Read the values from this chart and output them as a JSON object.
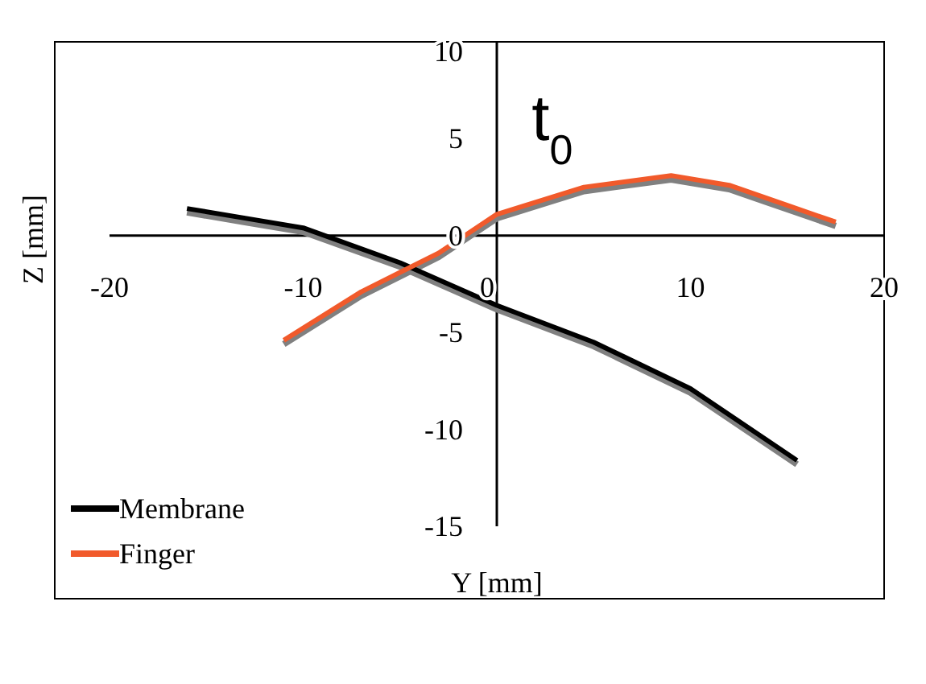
{
  "chart_data": {
    "type": "line",
    "xlabel": "Y [mm]",
    "ylabel": "Z [mm]",
    "xlim": [
      -20,
      20
    ],
    "ylim": [
      -15,
      10
    ],
    "xticks": [
      -20,
      -10,
      0,
      10,
      20
    ],
    "yticks": [
      10,
      5,
      0,
      -5,
      -10,
      -15
    ],
    "annotations": [
      "t$_{0}$"
    ],
    "legend": "bottom left",
    "series": [
      {
        "color": "#808080",
        "x": [
          -16,
          -13,
          -10,
          -5,
          0,
          5,
          10,
          15.5
        ],
        "values": [
          1.2,
          0.7,
          0.2,
          -1.6,
          -3.8,
          -5.7,
          -8.1,
          -11.8
        ]
      },
      {
        "color": "#808080",
        "x": [
          -11,
          -7,
          -3,
          0,
          4.5,
          9,
          12,
          17.5
        ],
        "values": [
          -5.6,
          -3.1,
          -1.1,
          0.9,
          2.3,
          2.9,
          2.4,
          0.5
        ]
      },
      {
        "name": "Membrane",
        "color": "#000000",
        "x": [
          -16,
          -13,
          -10,
          -5,
          0,
          5,
          10,
          15.5
        ],
        "values": [
          1.4,
          0.9,
          0.4,
          -1.4,
          -3.6,
          -5.5,
          -7.9,
          -11.6
        ]
      },
      {
        "name": "Finger",
        "color": "#f15a2b",
        "x": [
          -11,
          -7,
          -3,
          0,
          4.5,
          9,
          12,
          17.5
        ],
        "values": [
          -5.4,
          -2.9,
          -0.9,
          1.1,
          2.5,
          3.1,
          2.6,
          0.7
        ]
      }
    ]
  }
}
